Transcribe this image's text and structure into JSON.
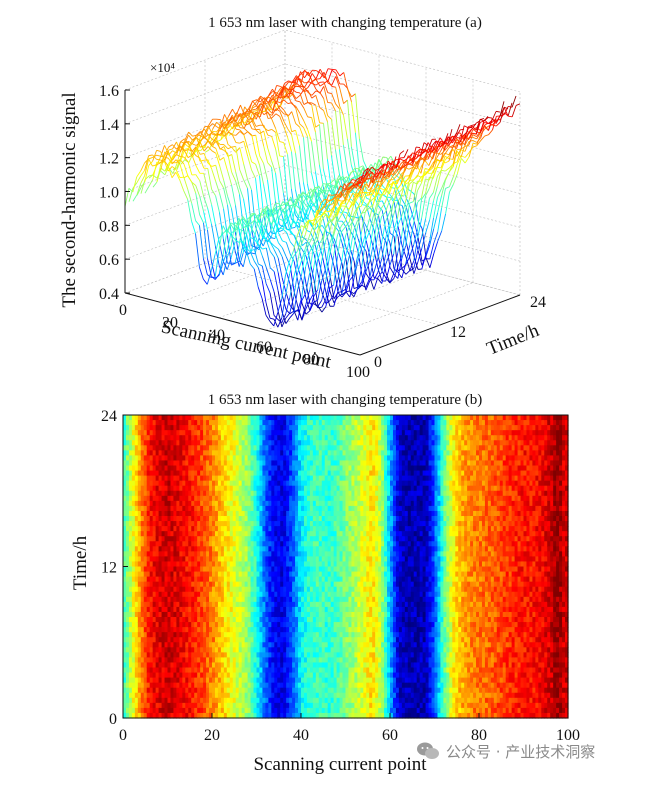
{
  "chart_data": [
    {
      "id": "a",
      "type": "surface-3d",
      "title": "1 653 nm laser with changing temperature (a)",
      "xlabel": "Scanning current point",
      "ylabel": "Time/h",
      "zlabel": "The second-harmonic signal",
      "z_exponent_label": "×10⁴",
      "x_ticks": [
        "0",
        "20",
        "40",
        "60",
        "80",
        "100"
      ],
      "y_ticks": [
        "0",
        "12",
        "24"
      ],
      "z_ticks": [
        "0.4",
        "0.6",
        "0.8",
        "1.0",
        "1.2",
        "1.4",
        "1.6"
      ],
      "xlim": [
        0,
        100
      ],
      "ylim": [
        0,
        24
      ],
      "zlim": [
        0.4,
        1.6
      ],
      "z_scale": 10000,
      "colormap": "jet",
      "profile_x": [
        0,
        2,
        5,
        8,
        10,
        15,
        20,
        25,
        30,
        32,
        34,
        36,
        38,
        40,
        45,
        50,
        55,
        58,
        60,
        62,
        64,
        66,
        68,
        70,
        72,
        75,
        80,
        85,
        90,
        95,
        98,
        100
      ],
      "profile_z_start": [
        0.95,
        1.0,
        1.1,
        1.2,
        1.22,
        1.22,
        1.18,
        1.1,
        0.85,
        0.65,
        0.55,
        0.6,
        0.75,
        0.9,
        0.95,
        0.85,
        0.75,
        0.6,
        0.45,
        0.42,
        0.45,
        0.55,
        0.7,
        0.85,
        0.95,
        1.05,
        1.15,
        1.25,
        1.32,
        1.38,
        1.42,
        1.45
      ],
      "profile_z_end": [
        1.2,
        1.22,
        1.28,
        1.35,
        1.38,
        1.4,
        1.42,
        1.42,
        1.3,
        1.05,
        0.9,
        0.85,
        0.88,
        0.95,
        1.0,
        0.9,
        0.8,
        0.65,
        0.5,
        0.45,
        0.5,
        0.6,
        0.75,
        0.9,
        1.0,
        1.1,
        1.2,
        1.3,
        1.38,
        1.45,
        1.5,
        1.55
      ],
      "grid": true
    },
    {
      "id": "b",
      "type": "heatmap",
      "title": "1 653 nm laser with changing temperature (b)",
      "xlabel": "Scanning current point",
      "ylabel": "Time/h",
      "x_ticks": [
        "0",
        "20",
        "40",
        "60",
        "80",
        "100"
      ],
      "y_ticks": [
        "0",
        "12",
        "24"
      ],
      "xlim": [
        0,
        100
      ],
      "ylim": [
        0,
        24
      ],
      "colormap": "jet",
      "column_x": [
        0,
        1,
        2,
        3,
        4,
        5,
        6,
        8,
        10,
        12,
        15,
        18,
        20,
        22,
        25,
        28,
        30,
        32,
        34,
        36,
        38,
        40,
        42,
        44,
        46,
        48,
        50,
        52,
        54,
        56,
        58,
        60,
        62,
        64,
        66,
        68,
        70,
        72,
        74,
        76,
        78,
        80,
        83,
        86,
        88,
        90,
        92,
        94,
        96,
        97,
        98,
        99,
        100
      ],
      "column_level": [
        0.42,
        0.5,
        0.58,
        0.66,
        0.74,
        0.8,
        0.86,
        0.9,
        0.92,
        0.9,
        0.86,
        0.8,
        0.75,
        0.68,
        0.6,
        0.52,
        0.4,
        0.22,
        0.12,
        0.1,
        0.2,
        0.36,
        0.42,
        0.44,
        0.42,
        0.44,
        0.5,
        0.54,
        0.6,
        0.66,
        0.55,
        0.3,
        0.08,
        0.05,
        0.05,
        0.06,
        0.2,
        0.45,
        0.62,
        0.7,
        0.74,
        0.76,
        0.78,
        0.82,
        0.84,
        0.86,
        0.86,
        0.88,
        0.92,
        0.96,
        0.98,
        0.92,
        0.92
      ]
    }
  ],
  "watermark": {
    "text": "公众号 · 产业技术洞察",
    "icon": "wechat-icon",
    "color": "#8a8a8a"
  }
}
